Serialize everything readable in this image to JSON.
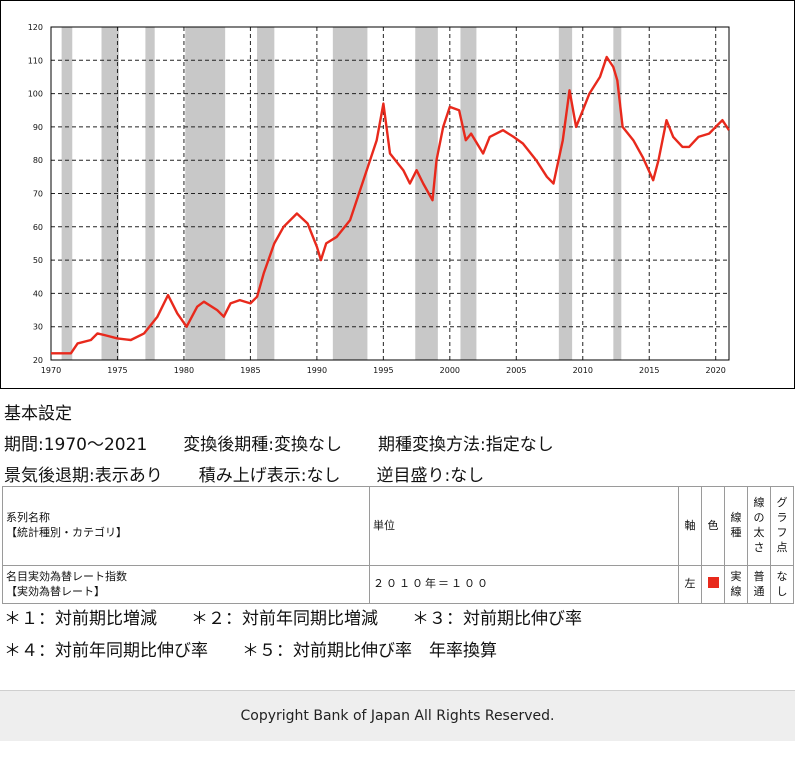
{
  "chart_data": {
    "type": "line",
    "title": "",
    "xlabel": "",
    "ylabel": "",
    "xlim": [
      1970,
      2021
    ],
    "ylim": [
      20,
      120
    ],
    "x_ticks": [
      "1970",
      "1975",
      "1980",
      "1985",
      "1990",
      "1995",
      "2000",
      "2005",
      "2010",
      "2015",
      "2020"
    ],
    "y_ticks": [
      "120",
      "110",
      "100",
      "90",
      "80",
      "70",
      "60",
      "50",
      "40",
      "30",
      "20"
    ],
    "grid": "dashed",
    "recession_shading": [
      [
        1970.8,
        1971.6
      ],
      [
        1973.8,
        1975.1
      ],
      [
        1977.1,
        1977.8
      ],
      [
        1980.1,
        1983.1
      ],
      [
        1985.5,
        1986.8
      ],
      [
        1991.2,
        1993.8
      ],
      [
        1997.4,
        1999.1
      ],
      [
        2000.8,
        2002.0
      ],
      [
        2008.2,
        2009.2
      ],
      [
        2012.3,
        2012.9
      ]
    ],
    "series": [
      {
        "name": "",
        "color": "#e8291c",
        "points": [
          [
            1970.0,
            22
          ],
          [
            1971.5,
            22
          ],
          [
            1972.0,
            25
          ],
          [
            1973.0,
            26
          ],
          [
            1973.5,
            28
          ],
          [
            1974.0,
            27.5
          ],
          [
            1975.0,
            26.5
          ],
          [
            1976.0,
            26
          ],
          [
            1977.0,
            28
          ],
          [
            1978.0,
            33
          ],
          [
            1978.8,
            39.5
          ],
          [
            1979.5,
            34
          ],
          [
            1980.2,
            30
          ],
          [
            1981.0,
            36
          ],
          [
            1981.5,
            37.5
          ],
          [
            1982.5,
            35
          ],
          [
            1983.0,
            33
          ],
          [
            1983.5,
            37
          ],
          [
            1984.2,
            38
          ],
          [
            1985.0,
            37
          ],
          [
            1985.5,
            39
          ],
          [
            1986.0,
            46
          ],
          [
            1986.8,
            55
          ],
          [
            1987.5,
            60
          ],
          [
            1988.5,
            64
          ],
          [
            1989.3,
            61
          ],
          [
            1990.0,
            54
          ],
          [
            1990.3,
            50
          ],
          [
            1990.7,
            55
          ],
          [
            1991.5,
            57
          ],
          [
            1992.5,
            62
          ],
          [
            1993.5,
            74
          ],
          [
            1994.5,
            86
          ],
          [
            1995.0,
            97
          ],
          [
            1995.5,
            82
          ],
          [
            1996.5,
            77
          ],
          [
            1997.0,
            73
          ],
          [
            1997.5,
            77
          ],
          [
            1998.0,
            73
          ],
          [
            1998.7,
            68
          ],
          [
            1999.0,
            80
          ],
          [
            1999.5,
            90
          ],
          [
            2000.0,
            96
          ],
          [
            2000.7,
            95
          ],
          [
            2001.2,
            86
          ],
          [
            2001.6,
            88
          ],
          [
            2002.5,
            82
          ],
          [
            2003.0,
            87
          ],
          [
            2004.0,
            89
          ],
          [
            2004.8,
            87
          ],
          [
            2005.5,
            85
          ],
          [
            2006.5,
            80
          ],
          [
            2007.3,
            75
          ],
          [
            2007.8,
            73
          ],
          [
            2008.5,
            86
          ],
          [
            2009.0,
            101
          ],
          [
            2009.5,
            90
          ],
          [
            2010.0,
            95
          ],
          [
            2010.5,
            100
          ],
          [
            2011.3,
            105
          ],
          [
            2011.8,
            111
          ],
          [
            2012.3,
            108
          ],
          [
            2012.6,
            104
          ],
          [
            2013.0,
            90
          ],
          [
            2013.8,
            86
          ],
          [
            2014.5,
            81
          ],
          [
            2015.3,
            74
          ],
          [
            2015.7,
            80
          ],
          [
            2016.3,
            92
          ],
          [
            2016.8,
            87
          ],
          [
            2017.5,
            84
          ],
          [
            2018.0,
            84
          ],
          [
            2018.7,
            87
          ],
          [
            2019.5,
            88
          ],
          [
            2020.0,
            90
          ],
          [
            2020.5,
            92
          ],
          [
            2021.0,
            89
          ]
        ]
      }
    ]
  },
  "settings": {
    "title": "基本設定",
    "period": "期間:1970〜2021",
    "freq_conversion": "変換後期種:変換なし",
    "freq_method": "期種変換方法:指定なし",
    "recession": "景気後退期:表示あり",
    "stacked": "積み上げ表示:なし",
    "reverse_axis": "逆目盛り:なし"
  },
  "table": {
    "headers": {
      "series_name_line1": "系列名称",
      "series_name_line2": "【統計種別・カテゴリ】",
      "unit": "単位",
      "axis": "軸",
      "color": "色",
      "line_type": "線種",
      "line_width": "線の太さ",
      "graph_point": "グラフ点"
    },
    "rows": [
      {
        "name_line1": "名目実効為替レート指数",
        "name_line2": "【実効為替レート】",
        "unit": "２０１０年＝１００",
        "axis": "左",
        "color": "#e8291c",
        "line_type": "実線",
        "line_width": "普通",
        "graph_point": "なし"
      }
    ]
  },
  "notes": [
    [
      "＊１：対前期比増減",
      "＊２：対前年同期比増減",
      "＊３：対前期比伸び率"
    ],
    [
      "＊４：対前年同期比伸び率",
      "＊５：対前期比伸び率　年率換算"
    ]
  ],
  "footer": "Copyright Bank of Japan All Rights Reserved."
}
